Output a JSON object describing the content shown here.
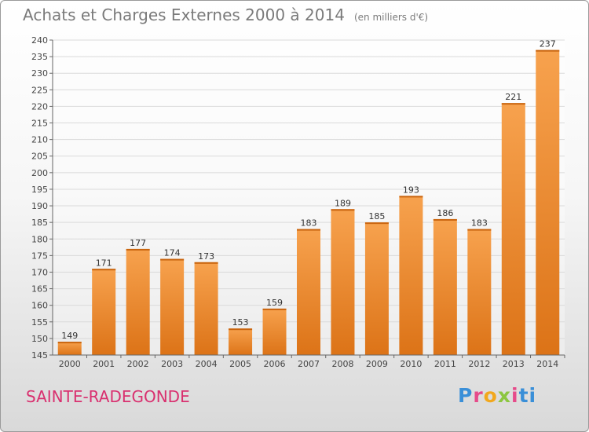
{
  "title": "Achats et Charges Externes 2000 à 2014",
  "subtitle": "(en milliers d'€)",
  "place": "SAINTE-RADEGONDE",
  "brand": {
    "letters": [
      "P",
      "r",
      "o",
      "x",
      "i",
      "ti"
    ],
    "colors": [
      "#3a8fd8",
      "#e64b8a",
      "#f2a81d",
      "#8cc63f",
      "#e64b8a",
      "#3a8fd8"
    ]
  },
  "chart_data": {
    "type": "bar",
    "categories": [
      "2000",
      "2001",
      "2002",
      "2003",
      "2004",
      "2005",
      "2006",
      "2007",
      "2008",
      "2009",
      "2010",
      "2011",
      "2012",
      "2013",
      "2014"
    ],
    "values": [
      149,
      171,
      177,
      174,
      173,
      153,
      159,
      183,
      189,
      185,
      193,
      186,
      183,
      221,
      237
    ],
    "ylim": [
      145,
      240
    ],
    "yticks": [
      145,
      150,
      155,
      160,
      165,
      170,
      175,
      180,
      185,
      190,
      195,
      200,
      205,
      210,
      215,
      220,
      225,
      230,
      235,
      240
    ],
    "grid": true,
    "bar_color": "#ee9035"
  }
}
